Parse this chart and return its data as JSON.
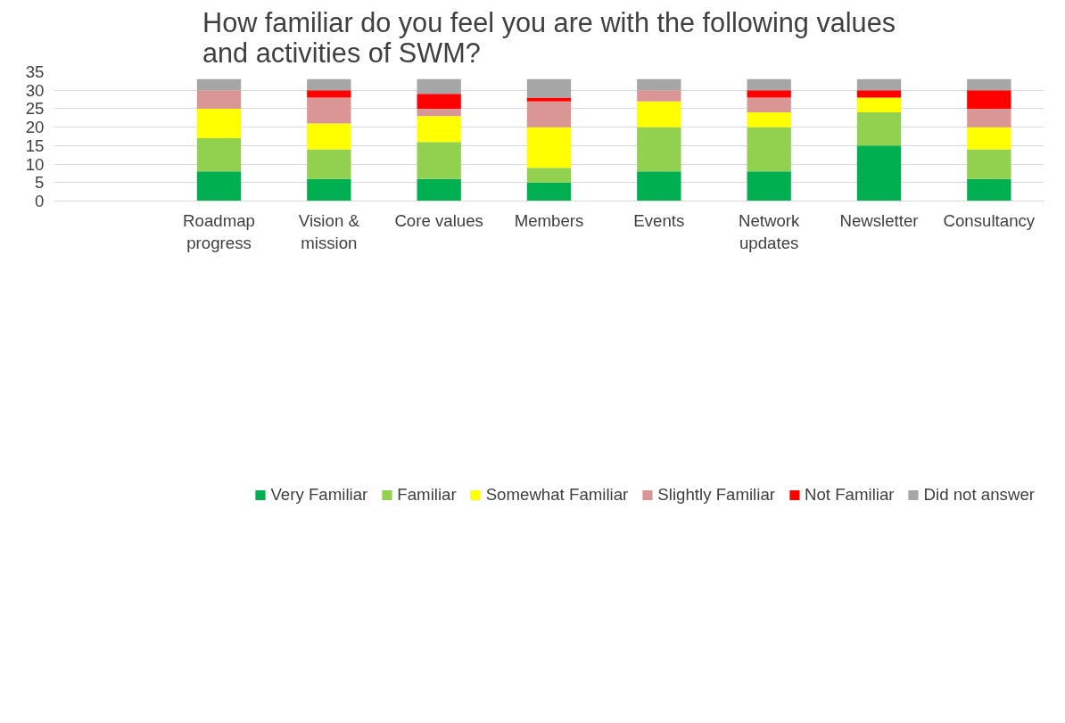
{
  "chart_data": {
    "type": "bar",
    "stacked": true,
    "title": "How familiar do you feel you are with the following values and activities of SWM?",
    "categories": [
      null,
      "Roadmap progress",
      "Vision & mission",
      "Core values",
      "Members",
      "Events",
      "Network updates",
      "Newsletter",
      "Consultancy"
    ],
    "series": [
      {
        "name": "Very Familiar",
        "color": "#00b050",
        "values": [
          null,
          8,
          6,
          6,
          5,
          8,
          8,
          15,
          6
        ]
      },
      {
        "name": "Familiar",
        "color": "#92d050",
        "values": [
          null,
          9,
          8,
          10,
          4,
          12,
          12,
          9,
          8
        ]
      },
      {
        "name": "Somewhat Familiar",
        "color": "#ffff00",
        "values": [
          null,
          8,
          7,
          7,
          11,
          7,
          4,
          4,
          6
        ]
      },
      {
        "name": "Slightly Familiar",
        "color": "#da9694",
        "values": [
          null,
          5,
          7,
          2,
          7,
          3,
          4,
          0,
          5
        ]
      },
      {
        "name": "Not Familiar",
        "color": "#ff0000",
        "values": [
          null,
          0,
          2,
          4,
          1,
          0,
          2,
          2,
          5
        ]
      },
      {
        "name": "Did not answer",
        "color": "#a6a6a6",
        "values": [
          null,
          3,
          3,
          4,
          5,
          3,
          3,
          3,
          3
        ]
      }
    ],
    "ylim": [
      0,
      35
    ],
    "yticks": [
      0,
      5,
      10,
      15,
      20,
      25,
      30,
      35
    ],
    "grid": "y",
    "legend": "bottom"
  }
}
